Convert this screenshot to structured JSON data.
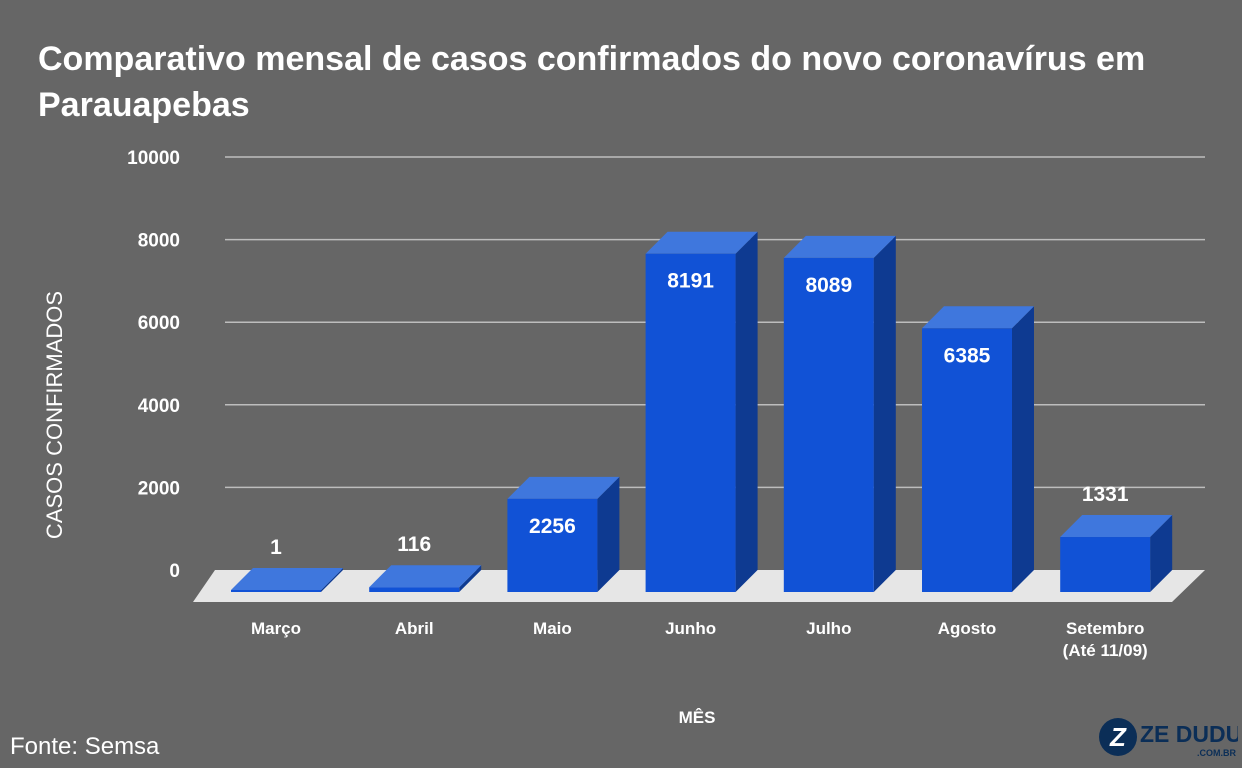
{
  "chart_data": {
    "type": "bar",
    "title": "Comparativo mensal de casos confirmados do novo coronavírus em Parauapebas",
    "xlabel": "MÊS",
    "ylabel": "CASOS CONFIRMADOS",
    "ylim": [
      0,
      10000
    ],
    "yticks": [
      0,
      2000,
      4000,
      6000,
      8000,
      10000
    ],
    "categories": [
      [
        "Março"
      ],
      [
        "Abril"
      ],
      [
        "Maio"
      ],
      [
        "Junho"
      ],
      [
        "Julho"
      ],
      [
        "Agosto"
      ],
      [
        "Setembro",
        "(Até 11/09)"
      ]
    ],
    "values": [
      1,
      116,
      2256,
      8191,
      8089,
      6385,
      1331
    ],
    "grid": true,
    "style": "3d",
    "colors": {
      "bar_front": "#1152D6",
      "bar_top": "#3F77DD",
      "bar_side": "#0E3A91",
      "floor": "#E6E6E6",
      "gridline": "#BDBDBD",
      "background": "#666666"
    }
  },
  "source": "Fonte: Semsa",
  "logo": {
    "text": "ZE DUDU",
    "subtext": ".COM.BR",
    "mark": "Z"
  }
}
